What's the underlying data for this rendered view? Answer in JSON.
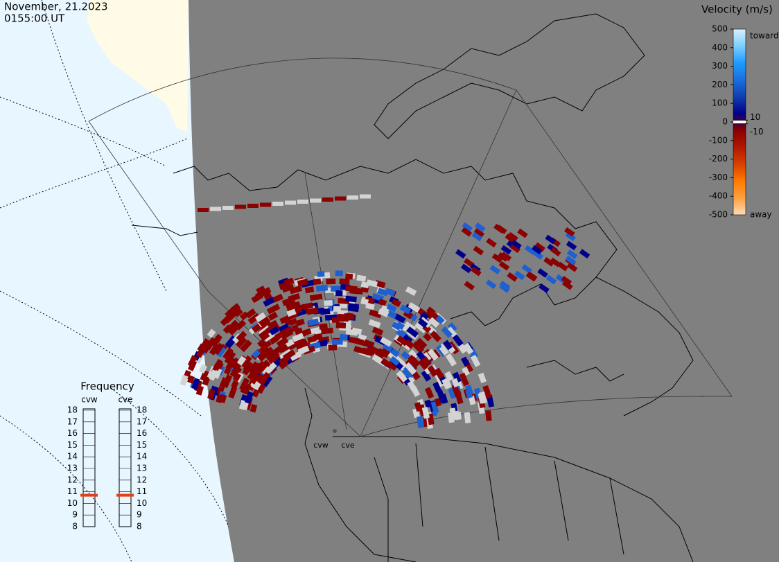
{
  "header": {
    "date": "November, 21.2023",
    "time": "0155:00 UT"
  },
  "velocity_scale": {
    "title": "Velocity (m/s)",
    "lim": [
      -500,
      500
    ],
    "ticks": [
      500,
      400,
      300,
      200,
      100,
      0,
      -100,
      -200,
      -300,
      -400,
      -500
    ],
    "inner_ticks": [
      10,
      -10
    ],
    "toward": "toward",
    "away": "away",
    "colors": [
      "#d8f0ff",
      "#7ccfff",
      "#1e9bff",
      "#1a6fe0",
      "#1040b0",
      "#00008b",
      "#8b0000",
      "#b01800",
      "#d84000",
      "#ff7a00",
      "#ffa040",
      "#ffdcb8"
    ]
  },
  "frequency": {
    "title": "Frequency",
    "ylim": [
      8,
      18
    ],
    "ticks": [
      8,
      9,
      10,
      11,
      12,
      13,
      14,
      15,
      16,
      17,
      18
    ],
    "radars": [
      {
        "name": "cvw",
        "value": 10.7
      },
      {
        "name": "cve",
        "value": 10.7
      }
    ],
    "marker_color": "#e0401a"
  }
}
